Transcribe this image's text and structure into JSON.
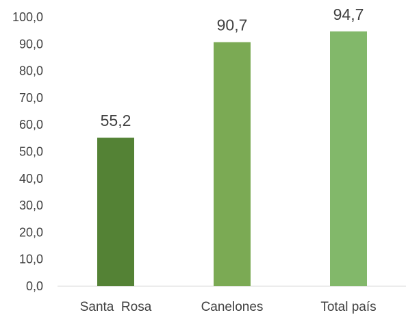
{
  "chart_data": {
    "type": "bar",
    "title": "",
    "xlabel": "",
    "ylabel": "",
    "categories": [
      "Santa  Rosa",
      "Canelones",
      "Total país"
    ],
    "values": [
      55.2,
      90.7,
      94.7
    ],
    "value_labels": [
      "55,2",
      "90,7",
      "94,7"
    ],
    "ylim": [
      0,
      100
    ],
    "yticks": [
      "0,0",
      "10,0",
      "20,0",
      "30,0",
      "40,0",
      "50,0",
      "60,0",
      "70,0",
      "80,0",
      "90,0",
      "100,0"
    ],
    "bar_colors": [
      "#548235",
      "#7BAA54",
      "#82B86A"
    ],
    "grid": false,
    "legend": "none"
  }
}
